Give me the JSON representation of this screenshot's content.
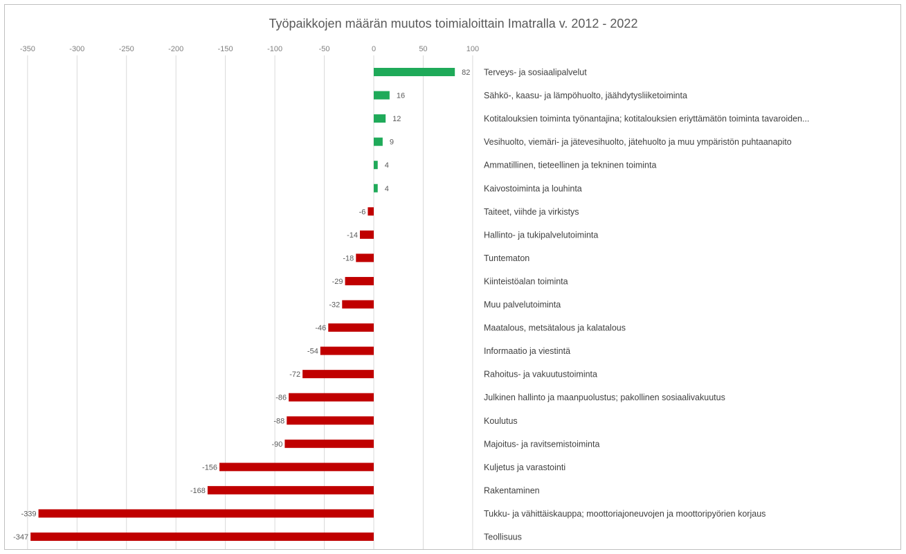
{
  "chart_data": {
    "type": "bar",
    "orientation": "horizontal",
    "title": "Työpaikkojen määrän muutos toimialoittain Imatralla v. 2012 - 2022",
    "xlabel": "",
    "ylabel": "",
    "xlim": [
      -350,
      100
    ],
    "x_ticks": [
      -350,
      -300,
      -250,
      -200,
      -150,
      -100,
      -50,
      0,
      50,
      100
    ],
    "x_axis_position": "top",
    "grid": true,
    "legend": "none",
    "colors": {
      "positive": "#1faa59",
      "negative": "#c00000"
    },
    "categories": [
      "Terveys- ja sosiaalipalvelut",
      "Sähkö-, kaasu- ja lämpöhuolto, jäähdytysliiketoiminta",
      "Kotitalouksien toiminta työnantajina; kotitalouksien eriyttämätön toiminta tavaroiden...",
      "Vesihuolto, viemäri- ja jätevesihuolto, jätehuolto ja muu ympäristön puhtaanapito",
      "Ammatillinen, tieteellinen ja tekninen toiminta",
      "Kaivostoiminta ja louhinta",
      "Taiteet, viihde ja virkistys",
      "Hallinto- ja tukipalvelutoiminta",
      "Tuntematon",
      "Kiinteistöalan toiminta",
      "Muu palvelutoiminta",
      "Maatalous, metsätalous ja kalatalous",
      "Informaatio ja viestintä",
      "Rahoitus- ja vakuutustoiminta",
      "Julkinen hallinto ja maanpuolustus; pakollinen sosiaalivakuutus",
      "Koulutus",
      "Majoitus- ja ravitsemistoiminta",
      "Kuljetus ja varastointi",
      "Rakentaminen",
      "Tukku- ja vähittäiskauppa; moottoriajoneuvojen ja moottoripyörien korjaus",
      "Teollisuus"
    ],
    "values": [
      82,
      16,
      12,
      9,
      4,
      4,
      -6,
      -14,
      -18,
      -29,
      -32,
      -46,
      -54,
      -72,
      -86,
      -88,
      -90,
      -156,
      -168,
      -339,
      -347
    ]
  }
}
